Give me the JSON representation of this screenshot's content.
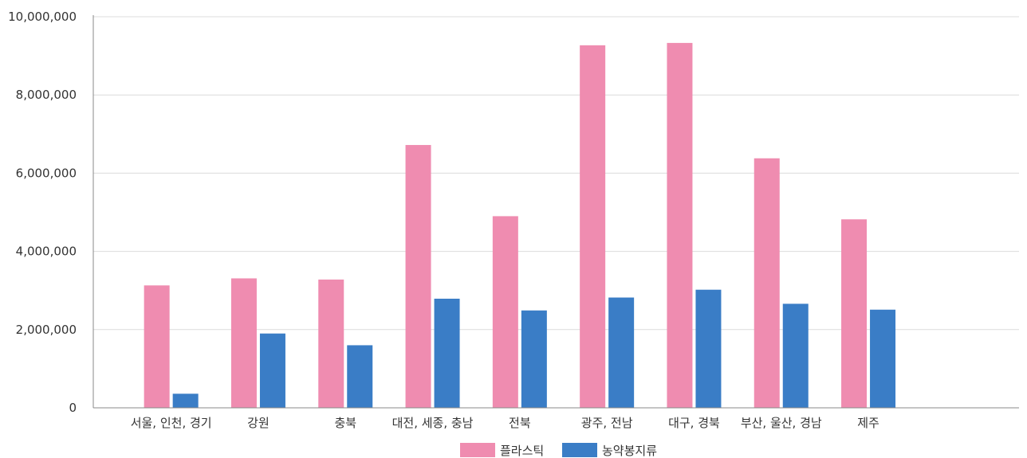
{
  "chart_data": {
    "type": "bar",
    "title": "",
    "xlabel": "",
    "ylabel": "",
    "categories": [
      "서울, 인천, 경기",
      "강원",
      "충북",
      "대전, 세종, 충남",
      "전북",
      "광주, 전남",
      "대구, 경북",
      "부산, 울산, 경남",
      "제주"
    ],
    "series": [
      {
        "name": "플라스틱",
        "color": "#ef8cb0",
        "values": [
          3130000,
          3310000,
          3280000,
          6720000,
          4900000,
          9270000,
          9330000,
          6380000,
          4820000
        ]
      },
      {
        "name": "농약봉지류",
        "color": "#3a7dc6",
        "values": [
          360000,
          1900000,
          1600000,
          2790000,
          2490000,
          2820000,
          3020000,
          2660000,
          2510000
        ]
      }
    ],
    "ylim": [
      0,
      10000000
    ],
    "yticks": [
      0,
      2000000,
      4000000,
      6000000,
      8000000,
      10000000
    ],
    "ytick_labels": [
      "0",
      "2,000,000",
      "4,000,000",
      "6,000,000",
      "8,000,000",
      "10,000,000"
    ],
    "grid": true,
    "legend_position": "bottom"
  }
}
